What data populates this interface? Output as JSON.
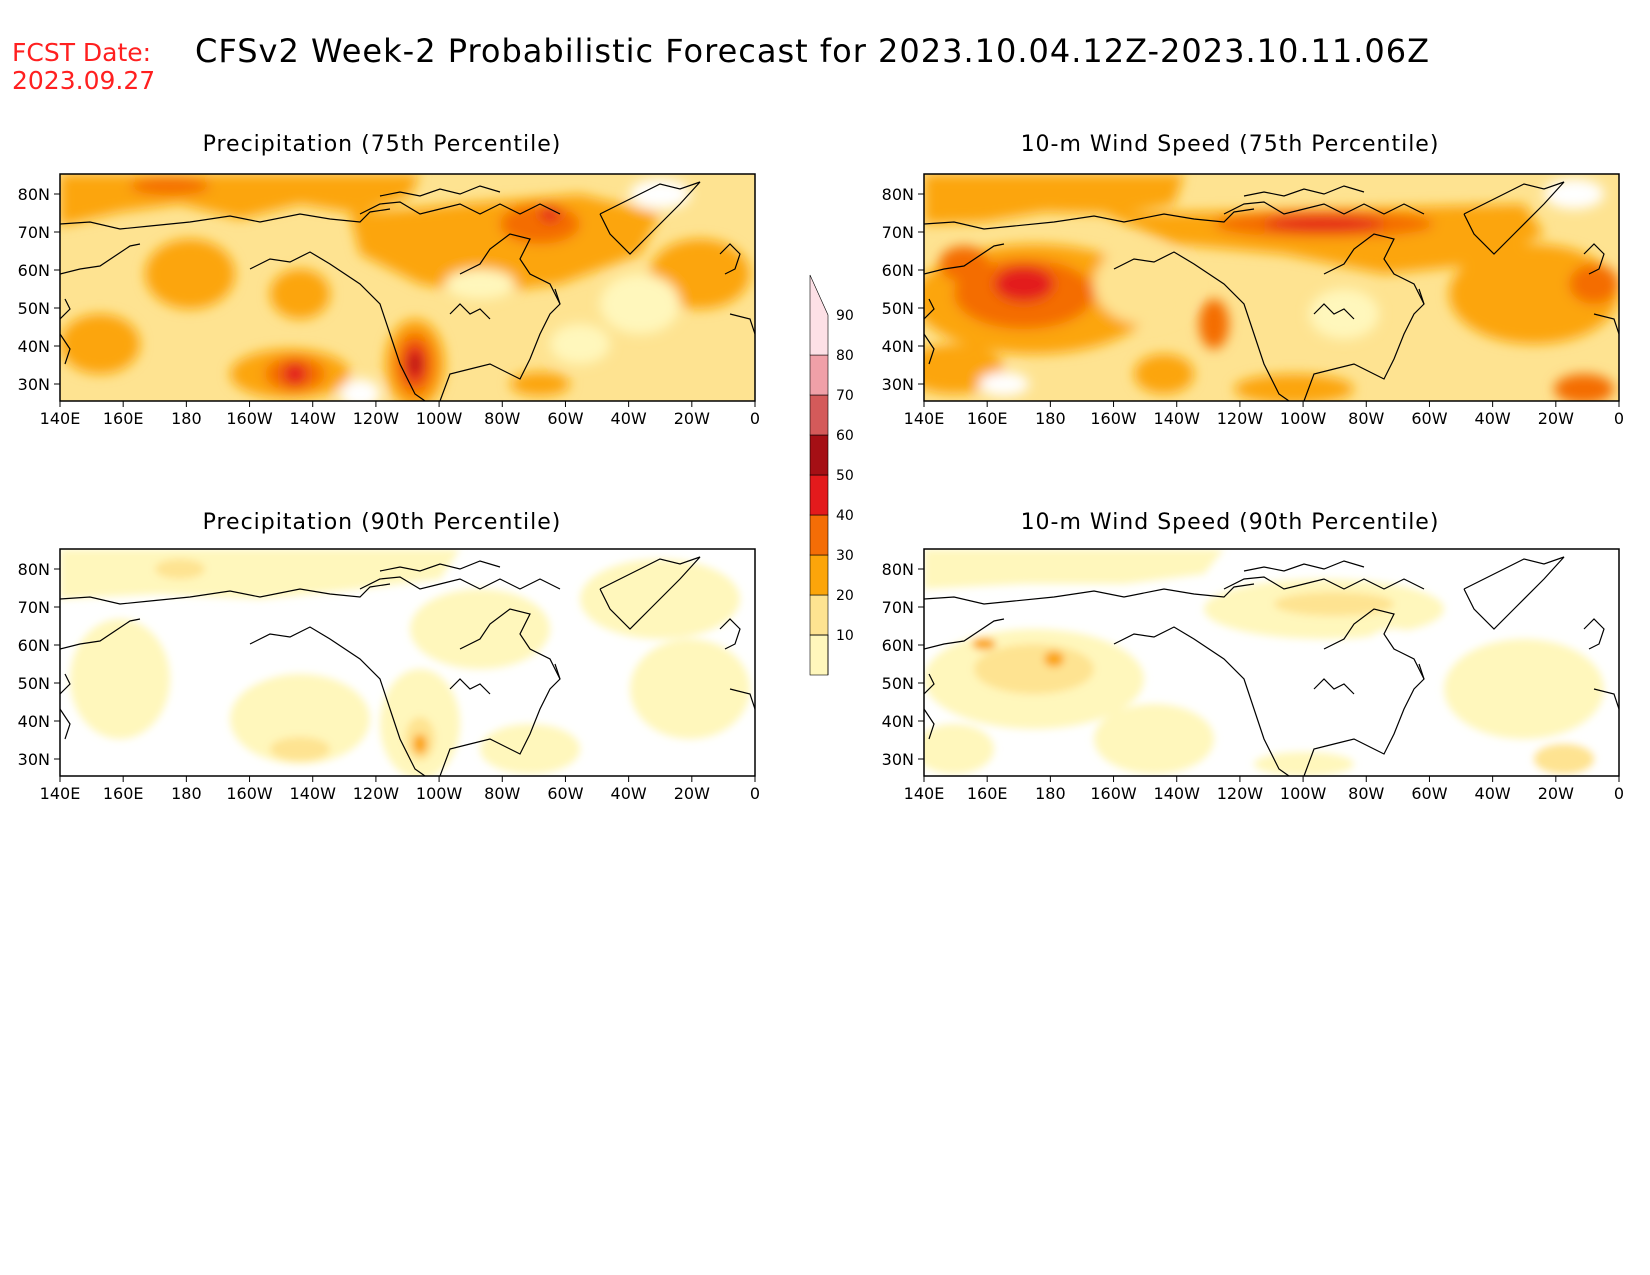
{
  "header": {
    "fcst_label": "FCST Date:",
    "fcst_date": "2023.09.27",
    "title": "CFSv2 Week-2 Probabilistic Forecast for 2023.10.04.12Z-2023.10.11.06Z"
  },
  "panels": [
    {
      "id": "precip75",
      "title": "Precipitation (75th Percentile)"
    },
    {
      "id": "wind75",
      "title": "10-m Wind Speed (75th Percentile)"
    },
    {
      "id": "precip90",
      "title": "Precipitation (90th Percentile)"
    },
    {
      "id": "wind90",
      "title": "10-m Wind Speed (90th Percentile)"
    }
  ],
  "axes": {
    "lat_labels": [
      "80N",
      "70N",
      "60N",
      "50N",
      "40N",
      "30N"
    ],
    "lon_labels": [
      "140E",
      "160E",
      "180",
      "160W",
      "140W",
      "120W",
      "100W",
      "80W",
      "60W",
      "40W",
      "20W",
      "0"
    ]
  },
  "colorbar": {
    "levels": [
      "10",
      "20",
      "30",
      "40",
      "50",
      "60",
      "70",
      "80",
      "90"
    ],
    "colors": [
      "#fff7bc",
      "#fee391",
      "#fca50a",
      "#f46d06",
      "#e31a1c",
      "#a50f15",
      "#d45a5a",
      "#f0a0a8",
      "#fde0e6"
    ]
  }
}
